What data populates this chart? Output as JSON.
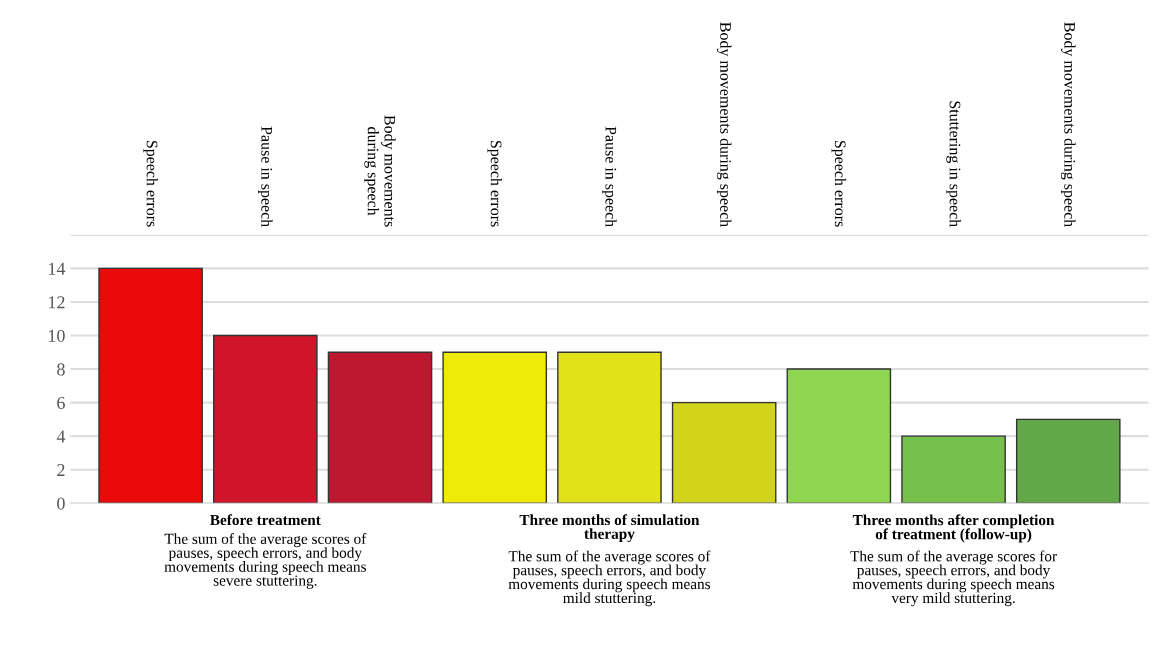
{
  "chart_data": {
    "type": "bar",
    "categories": [
      "Speech errors",
      "Pause in speech",
      "Body movements\nduring speech",
      "Speech errors",
      "Pause in speech",
      "Body movements during speech",
      "Speech errors",
      "Stuttering in speech",
      "Body movements during speech"
    ],
    "values": [
      14,
      10,
      9,
      9,
      9,
      6,
      8,
      4,
      5
    ],
    "colors": [
      "#ea0a0a",
      "#d0142a",
      "#be1830",
      "#eeea0a",
      "#e2e21a",
      "#d2d41c",
      "#8ed650",
      "#78c04c",
      "#62a848"
    ],
    "ylim": [
      0,
      16
    ],
    "yticks": [
      0,
      2,
      4,
      6,
      8,
      10,
      12,
      14,
      {
        "value": 16,
        "label": null
      }
    ],
    "grid": "y",
    "annotations": [
      "Before treatment",
      "The sum of the average scores of\npauses, speech errors, and body\nmovements during speech means\nsevere stuttering.",
      "Three months of simulation\ntherapy",
      "The sum of the average scores of\npauses, speech errors, and body\nmovements during speech means\nmild stuttering.",
      "Three months after completion\nof treatment (follow-up)",
      "The sum of the average scores for\npauses, speech errors, and body\nmovements during speech means\nvery mild stuttering."
    ]
  }
}
